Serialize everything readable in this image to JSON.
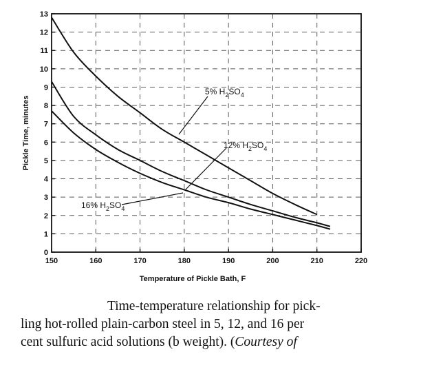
{
  "chart_data": {
    "type": "line",
    "title": "",
    "xlabel": "Temperature of Pickle Bath, F",
    "ylabel": "Pickle Time, minutes",
    "xlim": [
      150,
      220
    ],
    "ylim": [
      0,
      13
    ],
    "xticks": [
      "150",
      "160",
      "170",
      "180",
      "190",
      "200",
      "210",
      "220"
    ],
    "yticks": [
      "0",
      "1",
      "2",
      "3",
      "4",
      "5",
      "6",
      "7",
      "8",
      "9",
      "10",
      "11",
      "12",
      "13"
    ],
    "grid": true,
    "series": [
      {
        "name": "5% H2SO4",
        "x": [
          150,
          155,
          160,
          165,
          170,
          175,
          180,
          185,
          190,
          195,
          200,
          205,
          210
        ],
        "y": [
          12.8,
          10.9,
          9.6,
          8.5,
          7.6,
          6.7,
          6.0,
          5.3,
          4.6,
          3.9,
          3.2,
          2.6,
          2.05
        ]
      },
      {
        "name": "12% H2SO4",
        "x": [
          150,
          155,
          160,
          165,
          170,
          175,
          180,
          185,
          190,
          195,
          200,
          205,
          210,
          213
        ],
        "y": [
          9.3,
          7.4,
          6.4,
          5.6,
          5.0,
          4.4,
          3.9,
          3.4,
          3.0,
          2.6,
          2.25,
          1.9,
          1.6,
          1.4
        ]
      },
      {
        "name": "16% H2SO4",
        "x": [
          150,
          155,
          160,
          165,
          170,
          175,
          180,
          185,
          190,
          195,
          200,
          205,
          210,
          213
        ],
        "y": [
          7.7,
          6.5,
          5.6,
          4.9,
          4.3,
          3.8,
          3.4,
          3.0,
          2.7,
          2.35,
          2.05,
          1.75,
          1.45,
          1.25
        ]
      }
    ],
    "annotations": [
      {
        "series": "5% H2SO4",
        "prefix": "5% H",
        "sub1": "2",
        "mid": "SO",
        "sub2": "4"
      },
      {
        "series": "12% H2SO4",
        "prefix": "12% H",
        "sub1": "2",
        "mid": "SO",
        "sub2": "4"
      },
      {
        "series": "16% H2SO4",
        "prefix": "16% H",
        "sub1": "2",
        "mid": "SO",
        "sub2": "4"
      }
    ]
  },
  "caption": {
    "line1": "Time-temperature relationship for pick-",
    "line2": "ling hot-rolled plain-carbon steel in 5, 12, and 16 per",
    "line3_normal": "cent sulfuric acid solutions (b weight). (",
    "line3_italic": "Courtesy of"
  }
}
